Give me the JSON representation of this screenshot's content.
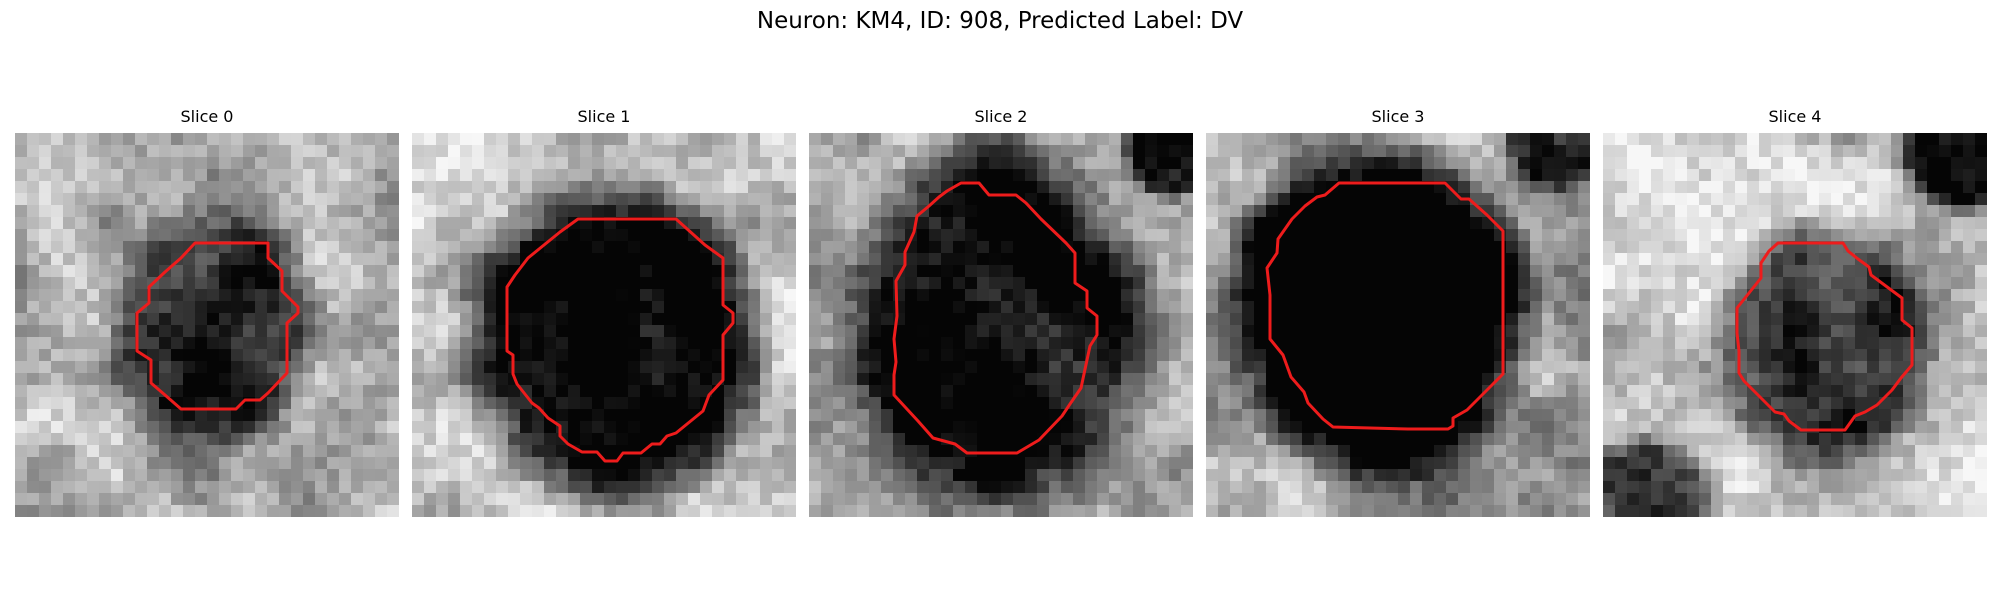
{
  "figure": {
    "title": "Neuron: KM4, ID: 908, Predicted Label: DV"
  },
  "colors": {
    "contour": "#ee1c1c",
    "background": "#ffffff"
  },
  "slices": [
    {
      "title": "Slice 0"
    },
    {
      "title": "Slice 1"
    },
    {
      "title": "Slice 2"
    },
    {
      "title": "Slice 3"
    },
    {
      "title": "Slice 4"
    }
  ]
}
